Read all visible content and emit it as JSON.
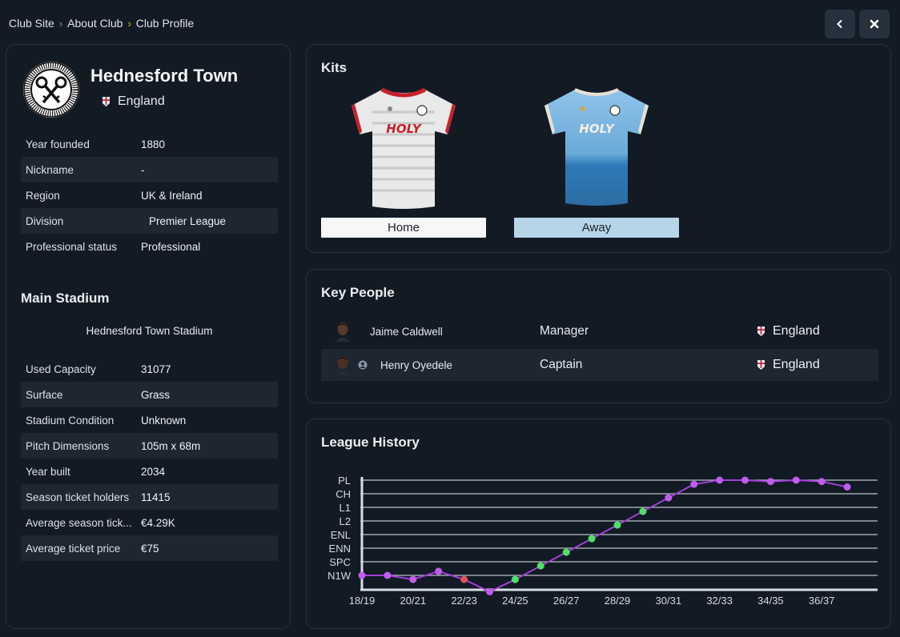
{
  "breadcrumb": [
    "Club Site",
    "About Club",
    "Club Profile"
  ],
  "club": {
    "name": "Hednesford Town",
    "country": "England",
    "info": [
      {
        "label": "Year founded",
        "value": "1880"
      },
      {
        "label": "Nickname",
        "value": "-"
      },
      {
        "label": "Region",
        "value": "UK & Ireland"
      },
      {
        "label": "Division",
        "value": "Premier League"
      },
      {
        "label": "Professional status",
        "value": "Professional"
      }
    ]
  },
  "stadium": {
    "title": "Main Stadium",
    "name": "Hednesford Town Stadium",
    "info": [
      {
        "label": "Used Capacity",
        "value": "31077"
      },
      {
        "label": "Surface",
        "value": "Grass"
      },
      {
        "label": "Stadium Condition",
        "value": "Unknown"
      },
      {
        "label": "Pitch Dimensions",
        "value": "105m x 68m"
      },
      {
        "label": "Year built",
        "value": "2034"
      },
      {
        "label": "Season ticket holders",
        "value": "11415"
      },
      {
        "label": "Average season tick...",
        "value": "€4.29K"
      },
      {
        "label": "Average ticket price",
        "value": "€75"
      }
    ]
  },
  "kits": {
    "title": "Kits",
    "home_label": "Home",
    "away_label": "Away",
    "sponsor": "HOLY"
  },
  "people": {
    "title": "Key People",
    "rows": [
      {
        "name": "Jaime Caldwell",
        "role": "Manager",
        "country": "England"
      },
      {
        "name": "Henry Oyedele",
        "role": "Captain",
        "country": "England"
      }
    ]
  },
  "colors": {
    "line": "#a23fd9",
    "promotion": "#4fe06a",
    "relegation": "#e0505a",
    "neutral": "#c15cf0"
  },
  "chart_data": {
    "type": "line",
    "title": "League History",
    "divisions": [
      "PL",
      "CH",
      "L1",
      "L2",
      "ENL",
      "ENN",
      "SPC",
      "N1W"
    ],
    "x_tick_labels": [
      "18/19",
      "20/21",
      "22/23",
      "24/25",
      "26/27",
      "28/29",
      "30/31",
      "32/33",
      "34/35",
      "36/37"
    ],
    "seasons": [
      "18/19",
      "19/20",
      "20/21",
      "21/22",
      "22/23",
      "23/24",
      "24/25",
      "25/26",
      "26/27",
      "27/28",
      "28/29",
      "29/30",
      "30/31",
      "31/32",
      "32/33",
      "33/34",
      "34/35",
      "35/36",
      "36/37",
      "37/38"
    ],
    "levels": [
      8,
      8,
      8.3,
      7.7,
      8.3,
      9.2,
      8.3,
      7.3,
      6.3,
      5.3,
      4.3,
      3.3,
      2.3,
      1.3,
      1.0,
      1.0,
      1.1,
      1.0,
      1.1,
      1.5
    ],
    "status": [
      "neutral",
      "neutral",
      "neutral",
      "neutral",
      "relegation",
      "neutral",
      "promotion",
      "promotion",
      "promotion",
      "promotion",
      "promotion",
      "promotion",
      "neutral",
      "neutral",
      "neutral",
      "neutral",
      "neutral",
      "neutral",
      "neutral",
      "neutral"
    ]
  }
}
